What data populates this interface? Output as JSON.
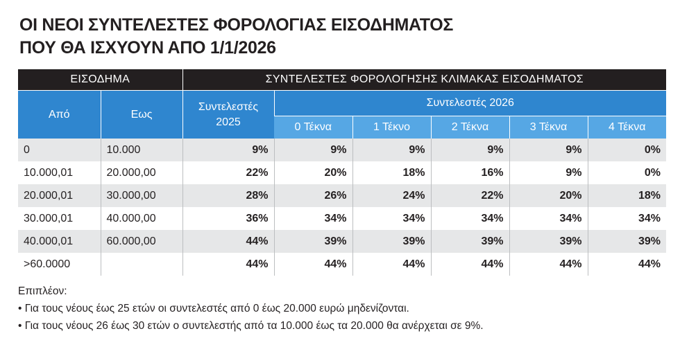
{
  "title": [
    "ΟΙ ΝΕΟΙ ΣΥΝΤΕΛΕΣΤΕΣ ΦΟΡΟΛΟΓΙΑΣ ΕΙΣΟΔΗΜΑΤΟΣ",
    "ΠΟΥ ΘΑ ΙΣΧΥΟΥΝ ΑΠΟ 1/1/2026"
  ],
  "table": {
    "group_headers": [
      "ΕΙΣΟΔΗΜΑ",
      "ΣΥΝΤΕΛΕΣΤΕΣ ΦΟΡΟΛΟΓΗΣΗΣ ΚΛΙΜΑΚΑΣ ΕΙΣΟΔΗΜΑΤΟΣ"
    ],
    "columns": [
      "Από",
      "Εως",
      "Συντελεστές 2025"
    ],
    "subgroup": "Συντελεστές 2026",
    "subcolumns": [
      "0 Τέκνα",
      "1 Τέκνο",
      "2 Τέκνα",
      "3 Τέκνα",
      "4 Τέκνα"
    ],
    "rows": [
      [
        "0",
        "10.000",
        "9%",
        "9%",
        "9%",
        "9%",
        "9%",
        "0%"
      ],
      [
        "10.000,01",
        "20.000,00",
        "22%",
        "20%",
        "18%",
        "16%",
        "9%",
        "0%"
      ],
      [
        "20.000,01",
        "30.000,00",
        "28%",
        "26%",
        "24%",
        "22%",
        "20%",
        "18%"
      ],
      [
        "30.000,01",
        "40.000,00",
        "36%",
        "34%",
        "34%",
        "34%",
        "34%",
        "34%"
      ],
      [
        "40.000,01",
        "60.000,00",
        "44%",
        "39%",
        "39%",
        "39%",
        "39%",
        "39%"
      ],
      [
        ">60.0000",
        null,
        "44%",
        "44%",
        "44%",
        "44%",
        "44%",
        "44%"
      ]
    ]
  },
  "notes": {
    "heading": "Επιπλέον:",
    "items": [
      "Για τους νέους έως 25 ετών οι συντελεστές από 0 έως 20.000 ευρώ μηδενίζονται.",
      "Για τους νέους 26 έως 30 ετών ο συντελεστής από τα 10.000 έως τα 20.000 θα ανέρχεται σε 9%."
    ]
  }
}
